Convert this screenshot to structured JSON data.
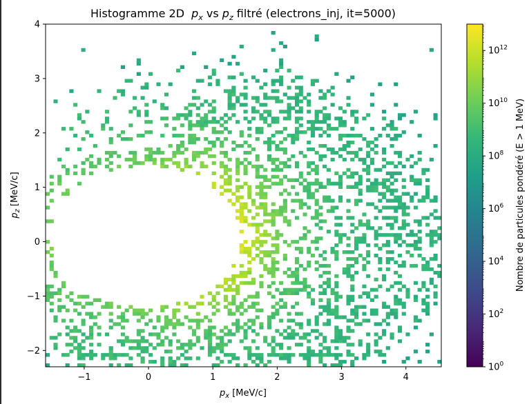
{
  "chart_data": {
    "type": "heatmap",
    "title": "Histogramme 2D",
    "title_math": [
      "p",
      "x",
      " vs ",
      "p",
      "z",
      " filtré (electrons_inj, it=5000)"
    ],
    "xlabel": "[MeV/c]",
    "xlabel_var": [
      "p",
      "x"
    ],
    "ylabel": "[MeV/c]",
    "ylabel_var": [
      "p",
      "z"
    ],
    "xlim": [
      -1.6,
      4.55
    ],
    "ylim": [
      -2.3,
      4.0
    ],
    "xticks": [
      -1,
      0,
      1,
      2,
      3,
      4
    ],
    "xtick_labels": [
      "−1",
      "0",
      "1",
      "2",
      "3",
      "4"
    ],
    "yticks": [
      -2,
      -1,
      0,
      1,
      2,
      3,
      4
    ],
    "ytick_labels": [
      "−2",
      "−1",
      "0",
      "1",
      "2",
      "3",
      "4"
    ],
    "bins": [
      100,
      100
    ],
    "colormap": "viridis",
    "color_scale": "log",
    "colorbar": {
      "label": "Nombre de particules pondéré (E > 1 MeV)",
      "range": [
        1,
        10000000000000.0
      ],
      "ticks": [
        {
          "base": "10",
          "exp": "0",
          "value": 1
        },
        {
          "base": "10",
          "exp": "2",
          "value": 100
        },
        {
          "base": "10",
          "exp": "4",
          "value": 10000
        },
        {
          "base": "10",
          "exp": "6",
          "value": 1000000
        },
        {
          "base": "10",
          "exp": "8",
          "value": 100000000
        },
        {
          "base": "10",
          "exp": "10",
          "value": 10000000000
        },
        {
          "base": "10",
          "exp": "12",
          "value": 1000000000000
        }
      ]
    },
    "distribution": {
      "shape": "crescent",
      "hole_center": [
        -0.05,
        0.1
      ],
      "hole_radius_x": 1.48,
      "hole_radius_y": 1.3,
      "peak_region": [
        1.5,
        0.0
      ],
      "peak_log10_count": 12.8,
      "typical_edge_log10_count": 9.0,
      "px_range": [
        -1.6,
        4.55
      ],
      "pz_range": [
        -2.3,
        4.0
      ]
    },
    "colors": {
      "viridis": [
        "#440154",
        "#482878",
        "#3e4a89",
        "#31688e",
        "#26828e",
        "#1f9e89",
        "#35b779",
        "#6ece58",
        "#b5de2b",
        "#fde725"
      ]
    }
  }
}
